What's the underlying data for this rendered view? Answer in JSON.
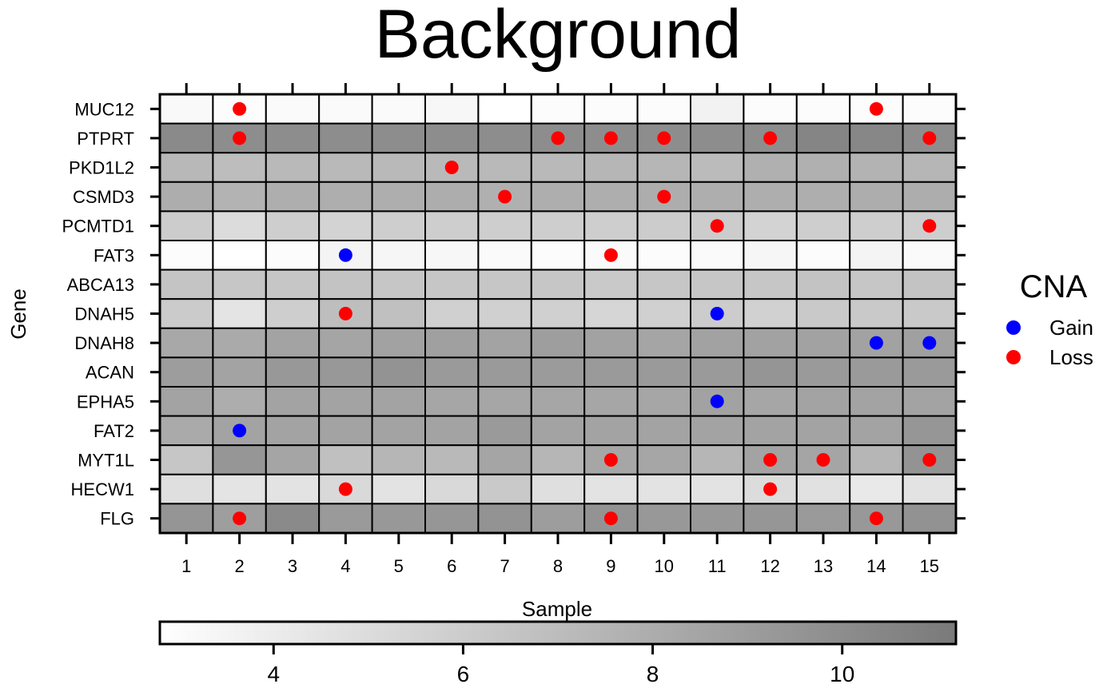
{
  "chart_data": {
    "type": "heatmap",
    "title": "Background",
    "xlabel": "Sample",
    "ylabel": "Gene",
    "x": [
      "1",
      "2",
      "3",
      "4",
      "5",
      "6",
      "7",
      "8",
      "9",
      "10",
      "11",
      "12",
      "13",
      "14",
      "15"
    ],
    "y": [
      "MUC12",
      "PTPRT",
      "PKD1L2",
      "CSMD3",
      "PCMTD1",
      "FAT3",
      "ABCA13",
      "DNAH5",
      "DNAH8",
      "ACAN",
      "EPHA5",
      "FAT2",
      "MYT1L",
      "HECW1",
      "FLG"
    ],
    "values": [
      [
        3.2,
        3.0,
        3.1,
        3.1,
        3.1,
        3.3,
        2.8,
        3.0,
        3.0,
        3.0,
        3.6,
        3.0,
        3.0,
        3.0,
        3.0
      ],
      [
        10.2,
        10.0,
        10.0,
        10.0,
        10.0,
        10.0,
        10.0,
        10.0,
        10.0,
        10.0,
        10.0,
        10.0,
        10.5,
        10.4,
        10.0
      ],
      [
        7.3,
        7.0,
        7.2,
        7.2,
        7.2,
        7.2,
        7.2,
        7.2,
        7.4,
        7.4,
        7.1,
        7.8,
        7.8,
        7.6,
        7.4
      ],
      [
        8.0,
        7.6,
        7.9,
        7.9,
        7.9,
        8.0,
        7.8,
        7.9,
        7.9,
        8.0,
        7.9,
        7.9,
        7.9,
        8.0,
        8.0
      ],
      [
        6.0,
        5.0,
        5.9,
        5.6,
        5.9,
        5.9,
        5.9,
        5.9,
        5.9,
        6.0,
        6.0,
        5.6,
        5.9,
        5.9,
        5.9
      ],
      [
        3.0,
        2.8,
        3.0,
        3.5,
        3.4,
        3.3,
        3.1,
        3.0,
        3.1,
        3.0,
        3.1,
        3.4,
        3.0,
        3.5,
        3.1
      ],
      [
        6.5,
        6.4,
        6.4,
        6.6,
        6.4,
        6.4,
        6.4,
        6.4,
        6.2,
        6.4,
        6.4,
        6.4,
        6.6,
        6.4,
        6.6
      ],
      [
        6.1,
        4.5,
        5.9,
        6.9,
        6.8,
        5.8,
        5.8,
        5.8,
        5.4,
        5.8,
        6.0,
        5.7,
        6.2,
        6.2,
        6.2
      ],
      [
        8.3,
        8.2,
        8.6,
        8.5,
        8.7,
        8.8,
        8.6,
        8.9,
        8.7,
        8.5,
        8.7,
        8.7,
        8.7,
        8.7,
        8.8
      ],
      [
        9.0,
        8.6,
        9.3,
        9.3,
        9.6,
        9.2,
        9.2,
        9.1,
        9.2,
        9.2,
        9.2,
        9.5,
        9.2,
        9.2,
        9.2
      ],
      [
        8.6,
        8.0,
        8.6,
        8.6,
        8.6,
        8.4,
        8.4,
        8.4,
        8.4,
        8.4,
        8.7,
        8.4,
        8.6,
        8.6,
        8.6
      ],
      [
        8.2,
        8.6,
        8.6,
        8.6,
        8.6,
        8.6,
        9.2,
        8.6,
        8.6,
        8.6,
        8.6,
        8.6,
        8.6,
        8.6,
        9.4
      ],
      [
        6.4,
        9.4,
        8.5,
        6.8,
        7.4,
        7.2,
        8.5,
        7.4,
        8.4,
        8.4,
        7.4,
        8.6,
        8.5,
        7.4,
        9.6
      ],
      [
        4.8,
        4.5,
        4.6,
        5.2,
        4.6,
        5.2,
        6.2,
        4.8,
        4.6,
        4.6,
        4.6,
        5.0,
        4.7,
        4.2,
        4.6
      ],
      [
        9.5,
        8.9,
        10.2,
        9.2,
        9.3,
        9.4,
        9.6,
        9.0,
        9.6,
        9.3,
        9.3,
        9.4,
        9.2,
        9.3,
        9.7
      ]
    ],
    "cna": [
      {
        "gene": "MUC12",
        "sample": "2",
        "type": "Loss"
      },
      {
        "gene": "MUC12",
        "sample": "14",
        "type": "Loss"
      },
      {
        "gene": "PTPRT",
        "sample": "2",
        "type": "Loss"
      },
      {
        "gene": "PTPRT",
        "sample": "8",
        "type": "Loss"
      },
      {
        "gene": "PTPRT",
        "sample": "9",
        "type": "Loss"
      },
      {
        "gene": "PTPRT",
        "sample": "10",
        "type": "Loss"
      },
      {
        "gene": "PTPRT",
        "sample": "12",
        "type": "Loss"
      },
      {
        "gene": "PTPRT",
        "sample": "15",
        "type": "Loss"
      },
      {
        "gene": "PKD1L2",
        "sample": "6",
        "type": "Loss"
      },
      {
        "gene": "CSMD3",
        "sample": "7",
        "type": "Loss"
      },
      {
        "gene": "CSMD3",
        "sample": "10",
        "type": "Loss"
      },
      {
        "gene": "PCMTD1",
        "sample": "11",
        "type": "Loss"
      },
      {
        "gene": "PCMTD1",
        "sample": "15",
        "type": "Loss"
      },
      {
        "gene": "FAT3",
        "sample": "4",
        "type": "Gain"
      },
      {
        "gene": "FAT3",
        "sample": "9",
        "type": "Loss"
      },
      {
        "gene": "DNAH5",
        "sample": "4",
        "type": "Loss"
      },
      {
        "gene": "DNAH5",
        "sample": "11",
        "type": "Gain"
      },
      {
        "gene": "DNAH8",
        "sample": "14",
        "type": "Gain"
      },
      {
        "gene": "DNAH8",
        "sample": "15",
        "type": "Gain"
      },
      {
        "gene": "EPHA5",
        "sample": "11",
        "type": "Gain"
      },
      {
        "gene": "FAT2",
        "sample": "2",
        "type": "Gain"
      },
      {
        "gene": "MYT1L",
        "sample": "9",
        "type": "Loss"
      },
      {
        "gene": "MYT1L",
        "sample": "12",
        "type": "Loss"
      },
      {
        "gene": "MYT1L",
        "sample": "13",
        "type": "Loss"
      },
      {
        "gene": "MYT1L",
        "sample": "15",
        "type": "Loss"
      },
      {
        "gene": "HECW1",
        "sample": "4",
        "type": "Loss"
      },
      {
        "gene": "HECW1",
        "sample": "12",
        "type": "Loss"
      },
      {
        "gene": "FLG",
        "sample": "2",
        "type": "Loss"
      },
      {
        "gene": "FLG",
        "sample": "9",
        "type": "Loss"
      },
      {
        "gene": "FLG",
        "sample": "14",
        "type": "Loss"
      }
    ],
    "legend": {
      "title": "CNA",
      "placement": "right",
      "entries": [
        {
          "label": "Gain",
          "color": "#0000ff"
        },
        {
          "label": "Loss",
          "color": "#ff0000"
        }
      ]
    },
    "colorbar": {
      "placement": "bottom",
      "range": [
        2.8,
        11.2
      ],
      "low_color": "#ffffff",
      "high_color": "#7a7a7a",
      "ticks": [
        {
          "value": 4,
          "label": "4"
        },
        {
          "value": 6,
          "label": "6"
        },
        {
          "value": 8,
          "label": "8"
        },
        {
          "value": 10,
          "label": "10"
        }
      ]
    },
    "grid": true
  }
}
